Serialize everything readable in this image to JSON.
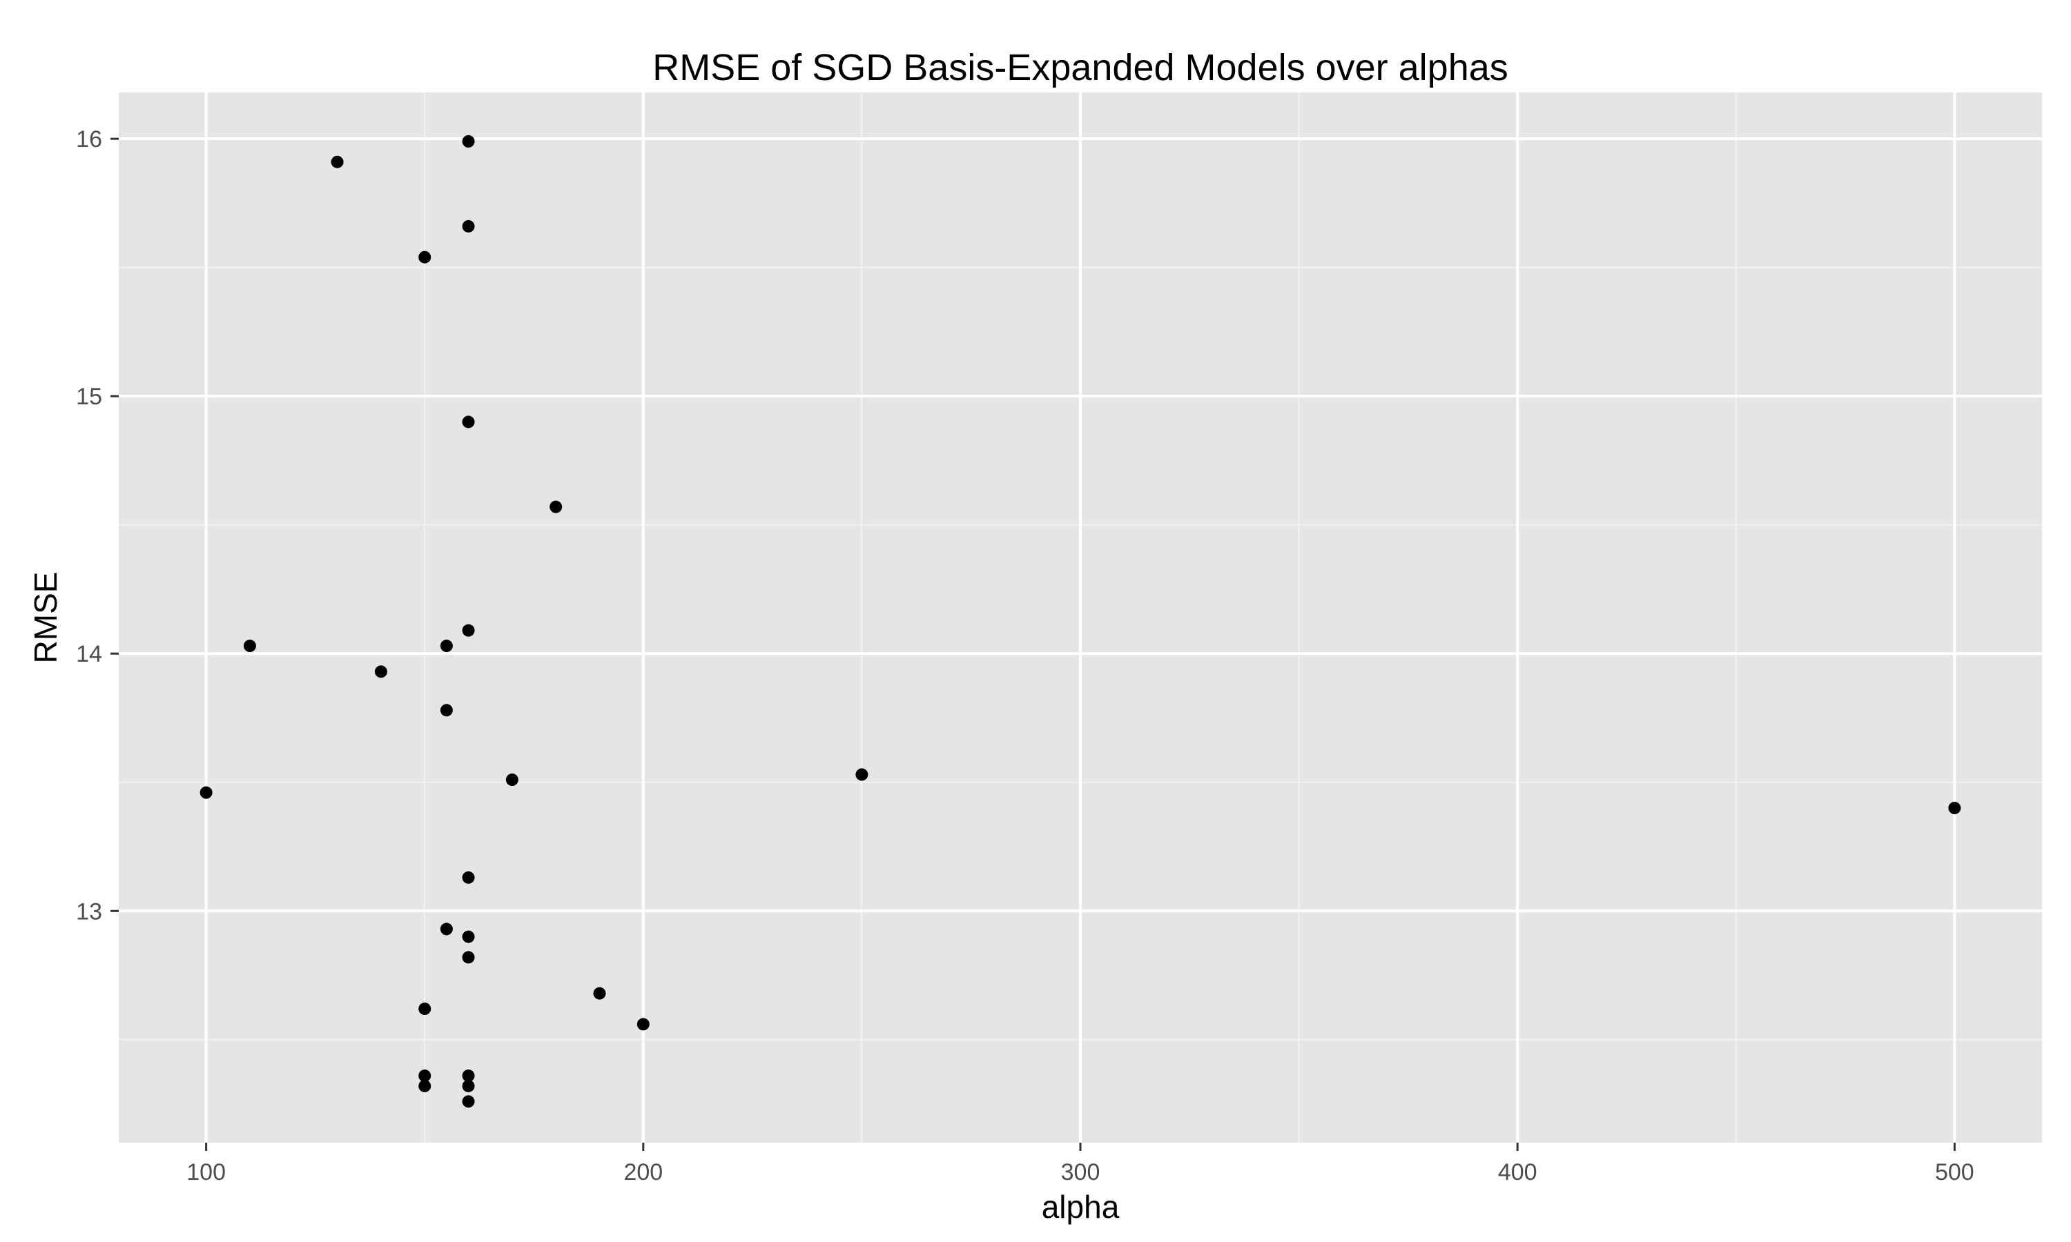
{
  "chart_data": {
    "type": "scatter",
    "title": "RMSE of SGD Basis-Expanded Models over alphas",
    "xlabel": "alpha",
    "ylabel": "RMSE",
    "xlim": [
      80,
      520
    ],
    "ylim": [
      12.1,
      16.18
    ],
    "xticks": [
      100,
      200,
      300,
      400,
      500
    ],
    "yticks": [
      13,
      14,
      15,
      16
    ],
    "x_minor": [
      150,
      250,
      350,
      450
    ],
    "y_minor": [
      12.5,
      13.5,
      14.5,
      15.5
    ],
    "grid": true,
    "panel_color": "#e5e5e5",
    "grid_color": "#ffffff",
    "point_color": "#000000",
    "points": [
      {
        "x": 100,
        "y": 13.46
      },
      {
        "x": 110,
        "y": 14.03
      },
      {
        "x": 130,
        "y": 15.91
      },
      {
        "x": 140,
        "y": 13.93
      },
      {
        "x": 150,
        "y": 15.54
      },
      {
        "x": 150,
        "y": 12.62
      },
      {
        "x": 150,
        "y": 12.36
      },
      {
        "x": 150,
        "y": 12.32
      },
      {
        "x": 155,
        "y": 14.03
      },
      {
        "x": 155,
        "y": 13.78
      },
      {
        "x": 155,
        "y": 12.93
      },
      {
        "x": 160,
        "y": 15.99
      },
      {
        "x": 160,
        "y": 15.66
      },
      {
        "x": 160,
        "y": 14.9
      },
      {
        "x": 160,
        "y": 14.09
      },
      {
        "x": 160,
        "y": 13.13
      },
      {
        "x": 160,
        "y": 12.9
      },
      {
        "x": 160,
        "y": 12.82
      },
      {
        "x": 160,
        "y": 12.36
      },
      {
        "x": 160,
        "y": 12.32
      },
      {
        "x": 160,
        "y": 12.26
      },
      {
        "x": 170,
        "y": 13.51
      },
      {
        "x": 180,
        "y": 14.57
      },
      {
        "x": 190,
        "y": 12.68
      },
      {
        "x": 200,
        "y": 12.56
      },
      {
        "x": 250,
        "y": 13.53
      },
      {
        "x": 500,
        "y": 13.4
      }
    ]
  }
}
